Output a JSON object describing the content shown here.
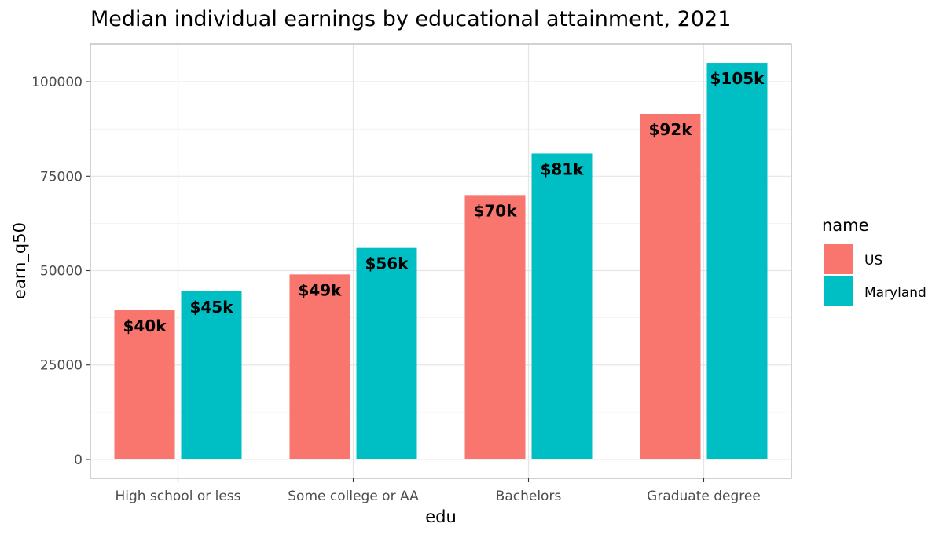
{
  "chart_data": {
    "type": "bar",
    "title": "Median individual earnings by educational attainment, 2021",
    "xlabel": "edu",
    "ylabel": "earn_q50",
    "categories": [
      "High school or less",
      "Some college or AA",
      "Bachelors",
      "Graduate degree"
    ],
    "series": [
      {
        "name": "US",
        "color": "#F8766D",
        "values": [
          39500,
          49000,
          70000,
          91500
        ],
        "labels": [
          "$40k",
          "$49k",
          "$70k",
          "$92k"
        ]
      },
      {
        "name": "Maryland",
        "color": "#00BFC4",
        "values": [
          44500,
          56000,
          81000,
          105000
        ],
        "labels": [
          "$45k",
          "$56k",
          "$81k",
          "$105k"
        ]
      }
    ],
    "ylim": [
      -5000,
      110000
    ],
    "yticks": [
      0,
      25000,
      50000,
      75000,
      100000
    ],
    "ytick_labels": [
      "0",
      "25000",
      "50000",
      "75000",
      "100000"
    ],
    "legend_title": "name",
    "legend_position": "right",
    "grid": true
  }
}
